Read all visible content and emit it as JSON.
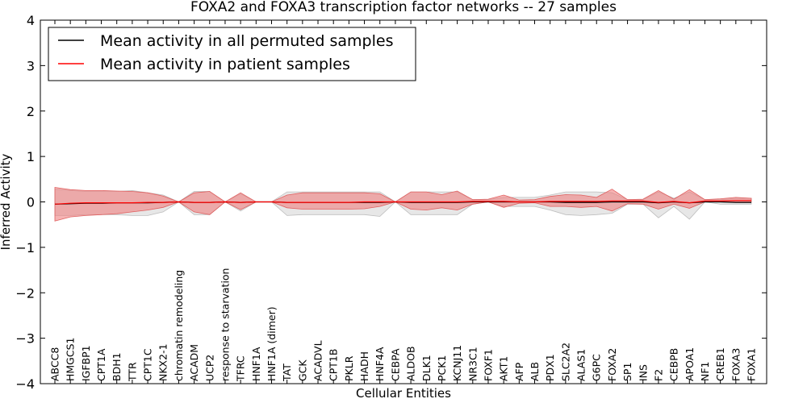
{
  "chart_data": {
    "type": "line",
    "title": "FOXA2 and FOXA3 transcription factor networks -- 27 samples",
    "xlabel": "Cellular Entities",
    "ylabel": "Inferred Activity",
    "ylim": [
      -4,
      4
    ],
    "yticks": [
      -4,
      -3,
      -2,
      -1,
      0,
      1,
      2,
      3,
      4
    ],
    "ytick_labels": [
      "−4",
      "−3",
      "−2",
      "−1",
      "0",
      "1",
      "2",
      "3",
      "4"
    ],
    "legend": {
      "placement": "top-left",
      "entries": [
        {
          "label": "Mean activity in all permuted samples",
          "color": "#000000"
        },
        {
          "label": "Mean activity in patient samples",
          "color": "#ff0000"
        }
      ]
    },
    "categories": [
      "ABCC8",
      "HMGCS1",
      "IGFBP1",
      "CPT1A",
      "BDH1",
      "TTR",
      "CPT1C",
      "NKX2-1",
      "chromatin remodeling",
      "ACADM",
      "UCP2",
      "response to starvation",
      "TFRC",
      "HNF1A",
      "HNF1A (dimer)",
      "TAT",
      "GCK",
      "ACADVL",
      "CPT1B",
      "PKLR",
      "HADH",
      "HNF4A",
      "CEBPA",
      "ALDOB",
      "DLK1",
      "PCK1",
      "KCNJ11",
      "NR3C1",
      "FOXF1",
      "AKT1",
      "AFP",
      "ALB",
      "PDX1",
      "SLC2A2",
      "ALAS1",
      "G6PC",
      "FOXA2",
      "SP1",
      "INS",
      "F2",
      "CEBPB",
      "APOA1",
      "NF1",
      "CREB1",
      "FOXA3",
      "FOXA1"
    ],
    "series": [
      {
        "name": "Mean activity in all permuted samples",
        "color": "#000000",
        "values": [
          -0.05,
          -0.04,
          -0.03,
          -0.03,
          -0.02,
          -0.02,
          -0.02,
          -0.01,
          0,
          -0.01,
          -0.01,
          0,
          -0.01,
          0,
          0,
          -0.01,
          -0.01,
          -0.01,
          -0.01,
          -0.01,
          -0.01,
          -0.01,
          0,
          -0.01,
          -0.01,
          -0.01,
          -0.01,
          0,
          0,
          0,
          0,
          0,
          0,
          -0.01,
          -0.01,
          -0.01,
          0,
          0,
          0,
          -0.02,
          0,
          -0.02,
          0,
          0,
          -0.01,
          -0.01
        ],
        "band_lower": [
          -0.3,
          -0.3,
          -0.28,
          -0.28,
          -0.28,
          -0.3,
          -0.3,
          -0.22,
          0,
          -0.28,
          -0.28,
          0,
          -0.2,
          0,
          0,
          -0.3,
          -0.28,
          -0.28,
          -0.28,
          -0.28,
          -0.28,
          -0.32,
          0,
          -0.28,
          -0.28,
          -0.28,
          -0.28,
          -0.05,
          0,
          -0.1,
          -0.1,
          -0.1,
          -0.18,
          -0.28,
          -0.3,
          -0.28,
          -0.25,
          -0.05,
          -0.05,
          -0.35,
          -0.1,
          -0.38,
          0,
          -0.05,
          -0.05,
          -0.05
        ],
        "band_upper": [
          0.28,
          0.25,
          0.23,
          0.23,
          0.23,
          0.25,
          0.2,
          0.15,
          0,
          0.23,
          0.23,
          0,
          0.18,
          0,
          0,
          0.22,
          0.22,
          0.22,
          0.22,
          0.22,
          0.22,
          0.22,
          0,
          0.22,
          0.22,
          0.22,
          0.22,
          0.05,
          0.05,
          0.1,
          0.1,
          0.1,
          0.15,
          0.22,
          0.22,
          0.22,
          0.2,
          0.05,
          0.05,
          0.22,
          0.08,
          0.22,
          0.05,
          0.05,
          0.08,
          0.08
        ]
      },
      {
        "name": "Mean activity in patient samples",
        "color": "#ff0000",
        "values": [
          -0.05,
          -0.03,
          -0.02,
          -0.02,
          -0.02,
          -0.02,
          -0.01,
          -0.01,
          0,
          -0.01,
          -0.01,
          0,
          -0.01,
          0,
          0,
          -0.01,
          -0.01,
          -0.01,
          -0.01,
          -0.01,
          0,
          0,
          0,
          0,
          0,
          0,
          0,
          0.01,
          0.01,
          0.01,
          0,
          0,
          0.01,
          0.01,
          0.01,
          0.01,
          0.02,
          0.02,
          0.02,
          -0.01,
          0.01,
          -0.02,
          0.02,
          0.02,
          0.03,
          0.03
        ],
        "band_lower": [
          -0.42,
          -0.33,
          -0.3,
          -0.28,
          -0.26,
          -0.22,
          -0.18,
          -0.12,
          0,
          -0.22,
          -0.28,
          0,
          -0.17,
          0,
          0,
          -0.13,
          -0.16,
          -0.16,
          -0.16,
          -0.16,
          -0.15,
          -0.1,
          0,
          -0.16,
          -0.18,
          -0.13,
          -0.18,
          -0.05,
          0,
          -0.12,
          -0.03,
          -0.02,
          -0.1,
          -0.1,
          -0.12,
          -0.1,
          -0.2,
          -0.04,
          -0.05,
          -0.16,
          -0.05,
          -0.14,
          0,
          0,
          0,
          0
        ],
        "band_upper": [
          0.32,
          0.27,
          0.25,
          0.25,
          0.24,
          0.23,
          0.2,
          0.13,
          0,
          0.2,
          0.23,
          0,
          0.2,
          0,
          0,
          0.15,
          0.2,
          0.2,
          0.2,
          0.2,
          0.2,
          0.18,
          0,
          0.22,
          0.22,
          0.16,
          0.24,
          0.05,
          0.06,
          0.15,
          0.04,
          0.05,
          0.12,
          0.16,
          0.15,
          0.1,
          0.28,
          0.05,
          0.06,
          0.25,
          0.06,
          0.27,
          0.05,
          0.07,
          0.1,
          0.08
        ]
      }
    ]
  }
}
